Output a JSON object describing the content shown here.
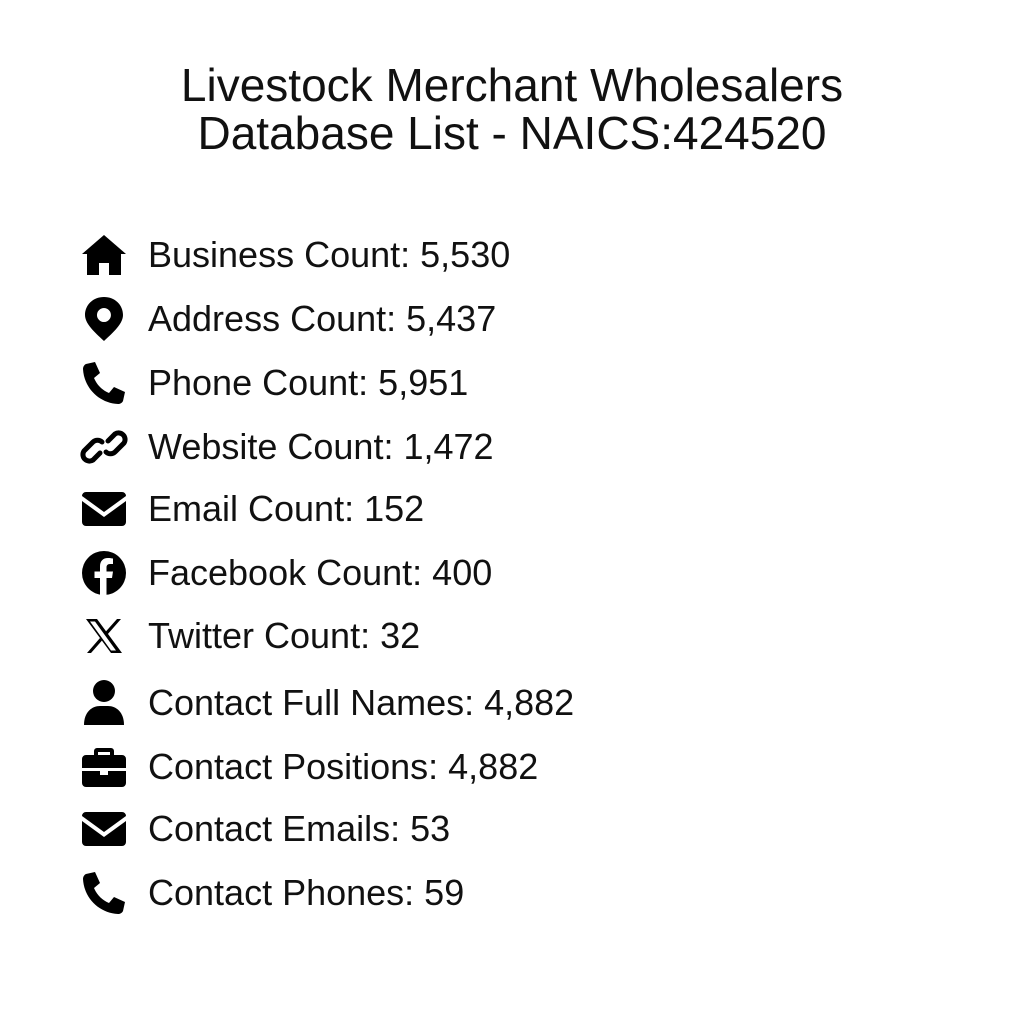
{
  "title": {
    "line1": "Livestock Merchant Wholesalers",
    "line2": "Database List - NAICS:424520"
  },
  "items": [
    {
      "icon": "home-icon",
      "text": "Business Count: 5,530"
    },
    {
      "icon": "map-pin-icon",
      "text": "Address Count: 5,437"
    },
    {
      "icon": "phone-icon",
      "text": "Phone Count: 5,951"
    },
    {
      "icon": "link-icon",
      "text": "Website Count: 1,472"
    },
    {
      "icon": "envelope-icon",
      "text": "Email Count: 152"
    },
    {
      "icon": "facebook-icon",
      "text": "Facebook Count: 400"
    },
    {
      "icon": "x-twitter-icon",
      "text": "Twitter Count: 32"
    },
    {
      "icon": "user-icon",
      "text": "Contact Full Names: 4,882"
    },
    {
      "icon": "briefcase-icon",
      "text": "Contact Positions: 4,882"
    },
    {
      "icon": "envelope-icon",
      "text": "Contact Emails: 53"
    },
    {
      "icon": "phone-icon",
      "text": "Contact Phones: 59"
    }
  ]
}
